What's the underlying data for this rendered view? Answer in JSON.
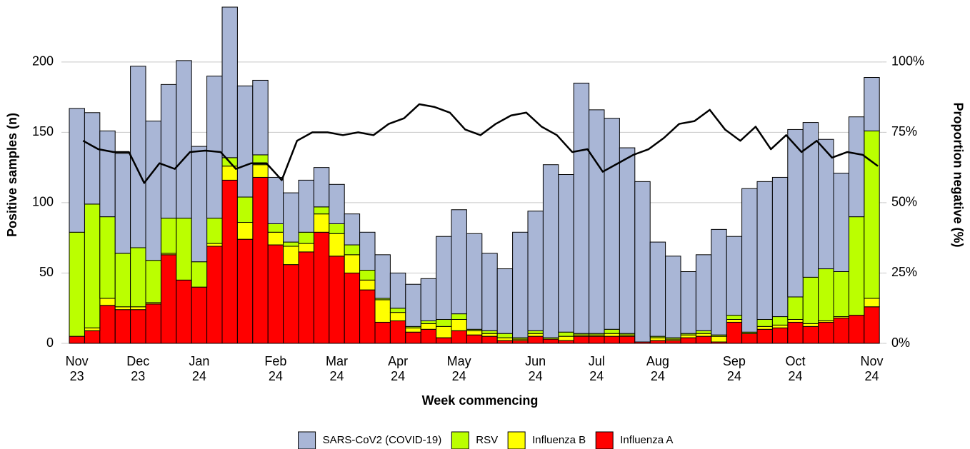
{
  "chart_data": {
    "type": "bar",
    "stacked": true,
    "ylabel": "Positive samples (n)",
    "y2label": "Proportion negative (%)",
    "xlabel": "Week commencing",
    "categories": [
      "Nov\n23",
      null,
      null,
      null,
      "Dec\n23",
      null,
      null,
      null,
      "Jan\n24",
      null,
      null,
      null,
      null,
      "Feb\n24",
      null,
      null,
      null,
      "Mar\n24",
      null,
      null,
      null,
      "Apr\n24",
      null,
      null,
      null,
      "May\n24",
      null,
      null,
      null,
      null,
      "Jun\n24",
      null,
      null,
      null,
      "Jul\n24",
      null,
      null,
      null,
      "Aug\n24",
      null,
      null,
      null,
      null,
      "Sep\n24",
      null,
      null,
      null,
      "Oct\n24",
      null,
      null,
      null,
      null,
      "Nov\n24"
    ],
    "ylim": [
      0,
      240
    ],
    "yticks": [
      0,
      50,
      100,
      150,
      200
    ],
    "y2lim": [
      0,
      120
    ],
    "y2ticks": [
      {
        "value": 0,
        "label": "0%"
      },
      {
        "value": 25,
        "label": "25%"
      },
      {
        "value": 50,
        "label": "50%"
      },
      {
        "value": 75,
        "label": "75%"
      },
      {
        "value": 100,
        "label": "100%"
      }
    ],
    "grid": true,
    "series": [
      {
        "name": "Influenza A",
        "color": "#ff0000",
        "values": [
          5,
          9,
          27,
          24,
          24,
          28,
          63,
          45,
          40,
          69,
          116,
          74,
          118,
          70,
          56,
          65,
          79,
          62,
          50,
          38,
          15,
          16,
          8,
          10,
          4,
          9,
          6,
          5,
          2,
          2,
          5,
          3,
          2,
          5,
          5,
          5,
          5,
          1,
          2,
          2,
          4,
          5,
          1,
          15,
          7,
          10,
          11,
          15,
          12,
          15,
          18,
          20,
          26
        ]
      },
      {
        "name": "Influenza B",
        "color": "#ffff00",
        "values": [
          0,
          2,
          5,
          2,
          2,
          1,
          1,
          0,
          0,
          2,
          10,
          12,
          9,
          9,
          13,
          6,
          13,
          16,
          13,
          7,
          16,
          6,
          3,
          4,
          8,
          8,
          3,
          2,
          2,
          1,
          2,
          0,
          3,
          1,
          1,
          2,
          1,
          0,
          2,
          1,
          2,
          2,
          4,
          2,
          0,
          2,
          2,
          2,
          2,
          1,
          1,
          0,
          6
        ]
      },
      {
        "name": "RSV",
        "color": "#bbff00",
        "values": [
          74,
          88,
          58,
          38,
          42,
          30,
          25,
          44,
          18,
          18,
          6,
          18,
          7,
          6,
          3,
          8,
          5,
          7,
          7,
          7,
          1,
          3,
          1,
          2,
          5,
          4,
          1,
          2,
          3,
          1,
          2,
          1,
          3,
          1,
          1,
          3,
          1,
          0,
          1,
          1,
          1,
          2,
          1,
          3,
          1,
          5,
          6,
          16,
          33,
          37,
          32,
          70,
          119
        ]
      },
      {
        "name": "SARS-CoV2 (COVID-19)",
        "color": "#a9b6d6",
        "values": [
          88,
          65,
          61,
          71,
          129,
          99,
          95,
          112,
          82,
          101,
          107,
          79,
          53,
          33,
          35,
          37,
          28,
          28,
          22,
          27,
          31,
          25,
          30,
          30,
          59,
          74,
          68,
          55,
          46,
          75,
          85,
          123,
          112,
          178,
          159,
          150,
          132,
          114,
          67,
          58,
          44,
          54,
          75,
          56,
          102,
          98,
          99,
          119,
          110,
          92,
          70,
          71,
          38
        ]
      },
      {
        "type": "line",
        "axis": "y2",
        "color": "#000000",
        "values": [
          72,
          69,
          68,
          68,
          57,
          64,
          62,
          68,
          68.5,
          68,
          62,
          64,
          64,
          58,
          72,
          75,
          75,
          74,
          75,
          74,
          78,
          80,
          85,
          84,
          82,
          76,
          74,
          78,
          81,
          82,
          77,
          74,
          68,
          69,
          61,
          64,
          67,
          69,
          73,
          78,
          79,
          83,
          76,
          72,
          77,
          69,
          74,
          68,
          72,
          66,
          68,
          67,
          63
        ]
      }
    ]
  }
}
